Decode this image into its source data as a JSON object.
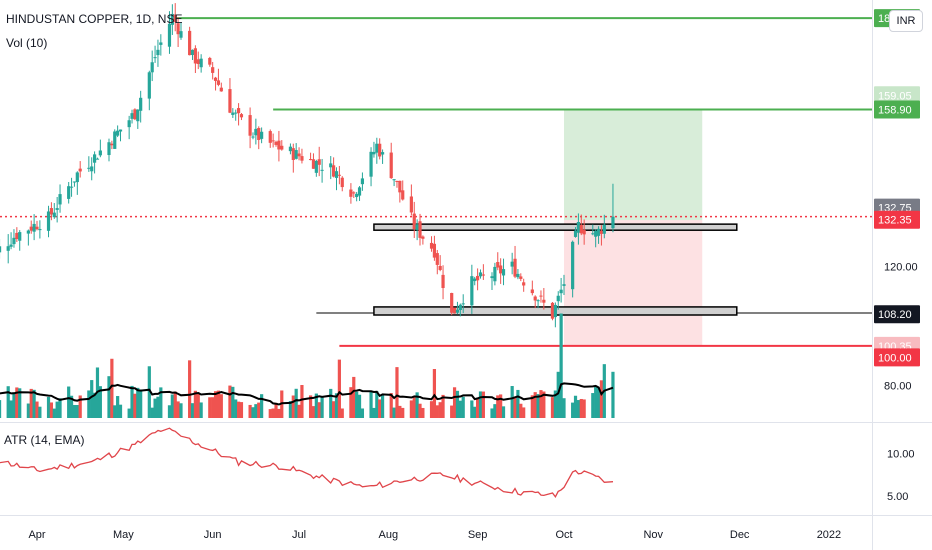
{
  "header": {
    "symbol_title": "HINDUSTAN COPPER, 1D, NSE",
    "volume_label": "Vol (10)",
    "atr_label": "ATR (14, EMA)",
    "currency": "INR"
  },
  "colors": {
    "up": "#26a69a",
    "down": "#ef5350",
    "green_line": "#4caf50",
    "red_line": "#f23645",
    "tag_gray": "#787b86",
    "tag_red": "#f23645",
    "tag_green": "#4caf50",
    "tag_black": "#131722",
    "vol_ma": "#000000",
    "atr_line": "#e0454a"
  },
  "price_axis_labels": [
    "120.00",
    "80.00"
  ],
  "price_tags": [
    {
      "text": "18",
      "price": 181.5,
      "color": "tag_green"
    },
    {
      "text": "159.05",
      "price": 162.4,
      "color": "tag_green_light"
    },
    {
      "text": "158.90",
      "price": 158.9,
      "color": "tag_green"
    },
    {
      "text": "132.75",
      "price": 134.6,
      "color": "tag_gray"
    },
    {
      "text": "132.35",
      "price": 131.6,
      "color": "tag_red"
    },
    {
      "text": "108.20",
      "price": 108.2,
      "color": "tag_black"
    },
    {
      "text": "100.35",
      "price": 100.35,
      "color": "tag_red_light"
    },
    {
      "text": "100.00",
      "price": 97.5,
      "color": "tag_red"
    }
  ],
  "atr_axis_labels": [
    "10.00",
    "5.00"
  ],
  "time_axis_labels": [
    "Apr",
    "May",
    "Jun",
    "Jul",
    "Aug",
    "Sep",
    "Oct",
    "Nov",
    "Dec",
    "2022"
  ],
  "chart_data": {
    "type": "candlestick",
    "title": "HINDUSTAN COPPER, 1D, NSE",
    "ylabel": "INR",
    "ylim": [
      82,
      186
    ],
    "levels": {
      "top_resistance": 181.5,
      "target": 158.9,
      "current_price": 132.35,
      "entry_zone": [
        129,
        130.5
      ],
      "support_zone": [
        108,
        110
      ],
      "support_line": 108.5,
      "stop": 100.35
    },
    "position": {
      "entry": 131.5,
      "target": 158.9,
      "stop": 100.35,
      "start": "2021-10-01",
      "end": "2021-11-18"
    },
    "ohlc_anchor_closes": [
      [
        "2021-03-15",
        122
      ],
      [
        "2021-03-25",
        128
      ],
      [
        "2021-04-05",
        132
      ],
      [
        "2021-04-15",
        143
      ],
      [
        "2021-04-25",
        150
      ],
      [
        "2021-05-05",
        158
      ],
      [
        "2021-05-12",
        172
      ],
      [
        "2021-05-18",
        182
      ],
      [
        "2021-05-25",
        172
      ],
      [
        "2021-06-01",
        168
      ],
      [
        "2021-06-08",
        158
      ],
      [
        "2021-06-15",
        153
      ],
      [
        "2021-06-22",
        150
      ],
      [
        "2021-06-29",
        148
      ],
      [
        "2021-07-06",
        146
      ],
      [
        "2021-07-13",
        144
      ],
      [
        "2021-07-20",
        138
      ],
      [
        "2021-07-28",
        150
      ],
      [
        "2021-08-03",
        142
      ],
      [
        "2021-08-10",
        130
      ],
      [
        "2021-08-17",
        124
      ],
      [
        "2021-08-23",
        108
      ],
      [
        "2021-08-30",
        116
      ],
      [
        "2021-09-06",
        118
      ],
      [
        "2021-09-13",
        120
      ],
      [
        "2021-09-20",
        114
      ],
      [
        "2021-09-27",
        108
      ],
      [
        "2021-10-01",
        116
      ],
      [
        "2021-10-06",
        130
      ],
      [
        "2021-10-12",
        128
      ],
      [
        "2021-10-18",
        132.35
      ]
    ],
    "volume_rel": "relative 0-1 bars, last 200 trading days",
    "atr_anchors": [
      [
        "2021-03-15",
        9.5
      ],
      [
        "2021-04-01",
        8.0
      ],
      [
        "2021-04-20",
        9.0
      ],
      [
        "2021-05-05",
        11.0
      ],
      [
        "2021-05-15",
        13.0
      ],
      [
        "2021-05-28",
        11.0
      ],
      [
        "2021-06-10",
        9.0
      ],
      [
        "2021-06-25",
        8.5
      ],
      [
        "2021-07-10",
        7.0
      ],
      [
        "2021-07-25",
        6.0
      ],
      [
        "2021-08-05",
        6.8
      ],
      [
        "2021-08-20",
        7.5
      ],
      [
        "2021-09-01",
        6.5
      ],
      [
        "2021-09-15",
        5.5
      ],
      [
        "2021-09-28",
        5.0
      ],
      [
        "2021-10-05",
        8.0
      ],
      [
        "2021-10-18",
        6.5
      ]
    ],
    "atr_ylim": [
      3,
      13.5
    ]
  }
}
